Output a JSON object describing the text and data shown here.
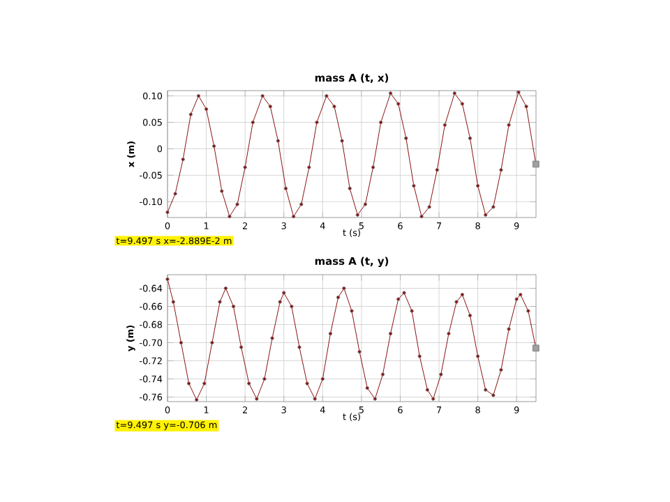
{
  "chart_data": [
    {
      "type": "line",
      "title": "mass A (t, x)",
      "xlabel": "t (s)",
      "ylabel": "x (m)",
      "xlim": [
        0,
        9.5
      ],
      "ylim": [
        -0.13,
        0.11
      ],
      "xticks": [
        0,
        1,
        2,
        3,
        4,
        5,
        6,
        7,
        8,
        9
      ],
      "yticks": [
        {
          "value": -0.1,
          "label": "-0.10"
        },
        {
          "value": -0.05,
          "label": "-0.05"
        },
        {
          "value": 0,
          "label": "0"
        },
        {
          "value": 0.05,
          "label": "0.05"
        },
        {
          "value": 0.1,
          "label": "0.10"
        }
      ],
      "grid": true,
      "marker": "circle",
      "line_style": "solid",
      "series": [
        {
          "color": "#8b1010",
          "x": [
            0,
            0.2,
            0.4,
            0.6,
            0.8,
            1.0,
            1.2,
            1.4,
            1.6,
            1.8,
            2.0,
            2.2,
            2.45,
            2.65,
            2.85,
            3.05,
            3.25,
            3.45,
            3.65,
            3.85,
            4.1,
            4.3,
            4.5,
            4.7,
            4.9,
            5.1,
            5.3,
            5.5,
            5.75,
            5.95,
            6.15,
            6.35,
            6.55,
            6.75,
            6.95,
            7.15,
            7.4,
            7.6,
            7.8,
            8.0,
            8.2,
            8.4,
            8.6,
            8.8,
            9.05,
            9.25,
            9.497
          ],
          "values": [
            -0.12,
            -0.085,
            -0.02,
            0.065,
            0.1,
            0.075,
            0.005,
            -0.08,
            -0.128,
            -0.105,
            -0.035,
            0.05,
            0.1,
            0.08,
            0.015,
            -0.075,
            -0.128,
            -0.105,
            -0.035,
            0.05,
            0.1,
            0.08,
            0.015,
            -0.075,
            -0.125,
            -0.105,
            -0.035,
            0.05,
            0.105,
            0.085,
            0.02,
            -0.07,
            -0.128,
            -0.11,
            -0.04,
            0.045,
            0.105,
            0.085,
            0.02,
            -0.07,
            -0.125,
            -0.11,
            -0.04,
            0.045,
            0.107,
            0.08,
            -0.029
          ]
        },
        {
          "type": "scatter",
          "marker": "square",
          "color": "#a0a0a0",
          "x": [
            9.497
          ],
          "values": [
            -0.029
          ]
        }
      ],
      "annotations": [
        "t=9.497 s  x=-2.889E-2 m"
      ]
    },
    {
      "type": "line",
      "title": "mass A (t, y)",
      "xlabel": "t (s)",
      "ylabel": "y (m)",
      "xlim": [
        0,
        9.5
      ],
      "ylim": [
        -0.765,
        -0.625
      ],
      "xticks": [
        0,
        1,
        2,
        3,
        4,
        5,
        6,
        7,
        8,
        9
      ],
      "yticks": [
        {
          "value": -0.76,
          "label": "-0.76"
        },
        {
          "value": -0.74,
          "label": "-0.74"
        },
        {
          "value": -0.72,
          "label": "-0.72"
        },
        {
          "value": -0.7,
          "label": "-0.70"
        },
        {
          "value": -0.68,
          "label": "-0.68"
        },
        {
          "value": -0.66,
          "label": "-0.66"
        },
        {
          "value": -0.64,
          "label": "-0.64"
        }
      ],
      "grid": true,
      "marker": "circle",
      "line_style": "solid",
      "series": [
        {
          "color": "#8b1010",
          "x": [
            0,
            0.15,
            0.35,
            0.55,
            0.75,
            0.95,
            1.15,
            1.35,
            1.5,
            1.7,
            1.9,
            2.1,
            2.3,
            2.5,
            2.7,
            2.9,
            3.0,
            3.2,
            3.4,
            3.6,
            3.8,
            4.0,
            4.2,
            4.4,
            4.55,
            4.75,
            4.95,
            5.15,
            5.35,
            5.55,
            5.75,
            5.95,
            6.1,
            6.3,
            6.5,
            6.7,
            6.85,
            7.05,
            7.25,
            7.45,
            7.6,
            7.8,
            8.0,
            8.2,
            8.4,
            8.6,
            8.8,
            9.0,
            9.1,
            9.3,
            9.497
          ],
          "values": [
            -0.63,
            -0.655,
            -0.7,
            -0.745,
            -0.763,
            -0.745,
            -0.7,
            -0.655,
            -0.64,
            -0.66,
            -0.705,
            -0.745,
            -0.762,
            -0.74,
            -0.695,
            -0.655,
            -0.645,
            -0.66,
            -0.705,
            -0.745,
            -0.762,
            -0.74,
            -0.69,
            -0.65,
            -0.64,
            -0.665,
            -0.71,
            -0.75,
            -0.762,
            -0.735,
            -0.69,
            -0.652,
            -0.645,
            -0.665,
            -0.715,
            -0.752,
            -0.762,
            -0.735,
            -0.69,
            -0.655,
            -0.647,
            -0.67,
            -0.715,
            -0.752,
            -0.758,
            -0.73,
            -0.685,
            -0.652,
            -0.647,
            -0.665,
            -0.706
          ]
        },
        {
          "type": "scatter",
          "marker": "square",
          "color": "#a0a0a0",
          "x": [
            9.497
          ],
          "values": [
            -0.706
          ]
        }
      ],
      "annotations": [
        "t=9.497 s  y=-0.706 m"
      ]
    }
  ]
}
